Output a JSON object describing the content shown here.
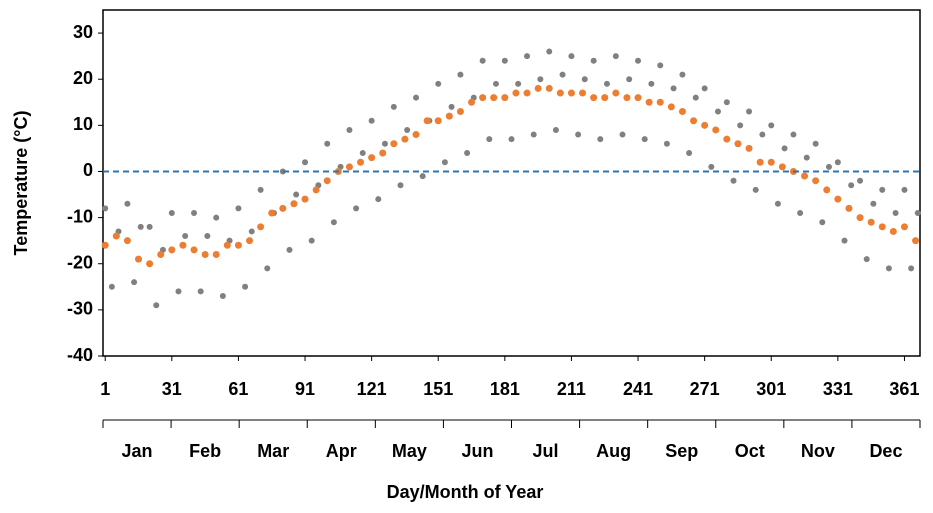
{
  "chart_data": {
    "type": "scatter",
    "x_label": "Day/Month of Year",
    "y_label": "Temperature (°C)",
    "xlim": [
      0,
      368
    ],
    "ylim": [
      -40,
      35
    ],
    "xticks": [
      1,
      31,
      61,
      91,
      121,
      151,
      181,
      211,
      241,
      271,
      301,
      331,
      361
    ],
    "yticks": [
      -40,
      -30,
      -20,
      -10,
      0,
      10,
      20,
      30
    ],
    "months": [
      "Jan",
      "Feb",
      "Mar",
      "Apr",
      "May",
      "Jun",
      "Jul",
      "Aug",
      "Sep",
      "Oct",
      "Nov",
      "Dec"
    ],
    "reference_line": {
      "value": 0,
      "color": "#2e75b6"
    },
    "series": [
      {
        "color": "#808080",
        "x": [
          1,
          4,
          7,
          11,
          14,
          17,
          21,
          24,
          27,
          31,
          34,
          37,
          41,
          44,
          47,
          51,
          54,
          57,
          61,
          64,
          67,
          71,
          74,
          77,
          81,
          84,
          87,
          91,
          94,
          97,
          101,
          104,
          107,
          111,
          114,
          117,
          121,
          124,
          127,
          131,
          134,
          137,
          141,
          144,
          147,
          151,
          154,
          157,
          161,
          164,
          167,
          171,
          174,
          177,
          181,
          184,
          187,
          191,
          194,
          197,
          201,
          204,
          207,
          211,
          214,
          217,
          221,
          224,
          227,
          231,
          234,
          237,
          241,
          244,
          247,
          251,
          254,
          257,
          261,
          264,
          267,
          271,
          274,
          277,
          281,
          284,
          287,
          291,
          294,
          297,
          301,
          304,
          307,
          311,
          314,
          317,
          321,
          324,
          327,
          331,
          334,
          337,
          341,
          344,
          347,
          351,
          354,
          357,
          361,
          364,
          367
        ],
        "values": [
          -8,
          -25,
          -13,
          -7,
          -24,
          -12,
          -12,
          -29,
          -17,
          -9,
          -26,
          -14,
          -9,
          -26,
          -14,
          -10,
          -27,
          -15,
          -8,
          -25,
          -13,
          -4,
          -21,
          -9,
          0,
          -17,
          -5,
          2,
          -15,
          -3,
          6,
          -11,
          1,
          9,
          -8,
          4,
          11,
          -6,
          6,
          14,
          -3,
          9,
          16,
          -1,
          11,
          19,
          2,
          14,
          21,
          4,
          16,
          24,
          7,
          19,
          24,
          7,
          19,
          25,
          8,
          20,
          26,
          9,
          21,
          25,
          8,
          20,
          24,
          7,
          19,
          25,
          8,
          20,
          24,
          7,
          19,
          23,
          6,
          18,
          21,
          4,
          16,
          18,
          1,
          13,
          15,
          -2,
          10,
          13,
          -4,
          8,
          10,
          -7,
          5,
          8,
          -9,
          3,
          6,
          -11,
          1,
          2,
          -15,
          -3,
          -2,
          -19,
          -7,
          -4,
          -21,
          -9,
          -4,
          -21,
          -9
        ]
      },
      {
        "color": "#ed7d31",
        "x": [
          1,
          6,
          11,
          16,
          21,
          26,
          31,
          36,
          41,
          46,
          51,
          56,
          61,
          66,
          71,
          76,
          81,
          86,
          91,
          96,
          101,
          106,
          111,
          116,
          121,
          126,
          131,
          136,
          141,
          146,
          151,
          156,
          161,
          166,
          171,
          176,
          181,
          186,
          191,
          196,
          201,
          206,
          211,
          216,
          221,
          226,
          231,
          236,
          241,
          246,
          251,
          256,
          261,
          266,
          271,
          276,
          281,
          286,
          291,
          296,
          301,
          306,
          311,
          316,
          321,
          326,
          331,
          336,
          341,
          346,
          351,
          356,
          361,
          366
        ],
        "values": [
          -16,
          -14,
          -15,
          -19,
          -20,
          -18,
          -17,
          -16,
          -17,
          -18,
          -18,
          -16,
          -16,
          -15,
          -12,
          -9,
          -8,
          -7,
          -6,
          -4,
          -2,
          0,
          1,
          2,
          3,
          4,
          6,
          7,
          8,
          11,
          11,
          12,
          13,
          15,
          16,
          16,
          16,
          17,
          17,
          18,
          18,
          17,
          17,
          17,
          16,
          16,
          17,
          16,
          16,
          15,
          15,
          14,
          13,
          11,
          10,
          9,
          7,
          6,
          5,
          2,
          2,
          1,
          0,
          -1,
          -2,
          -4,
          -6,
          -8,
          -10,
          -11,
          -12,
          -13,
          -12,
          -15
        ]
      }
    ]
  }
}
